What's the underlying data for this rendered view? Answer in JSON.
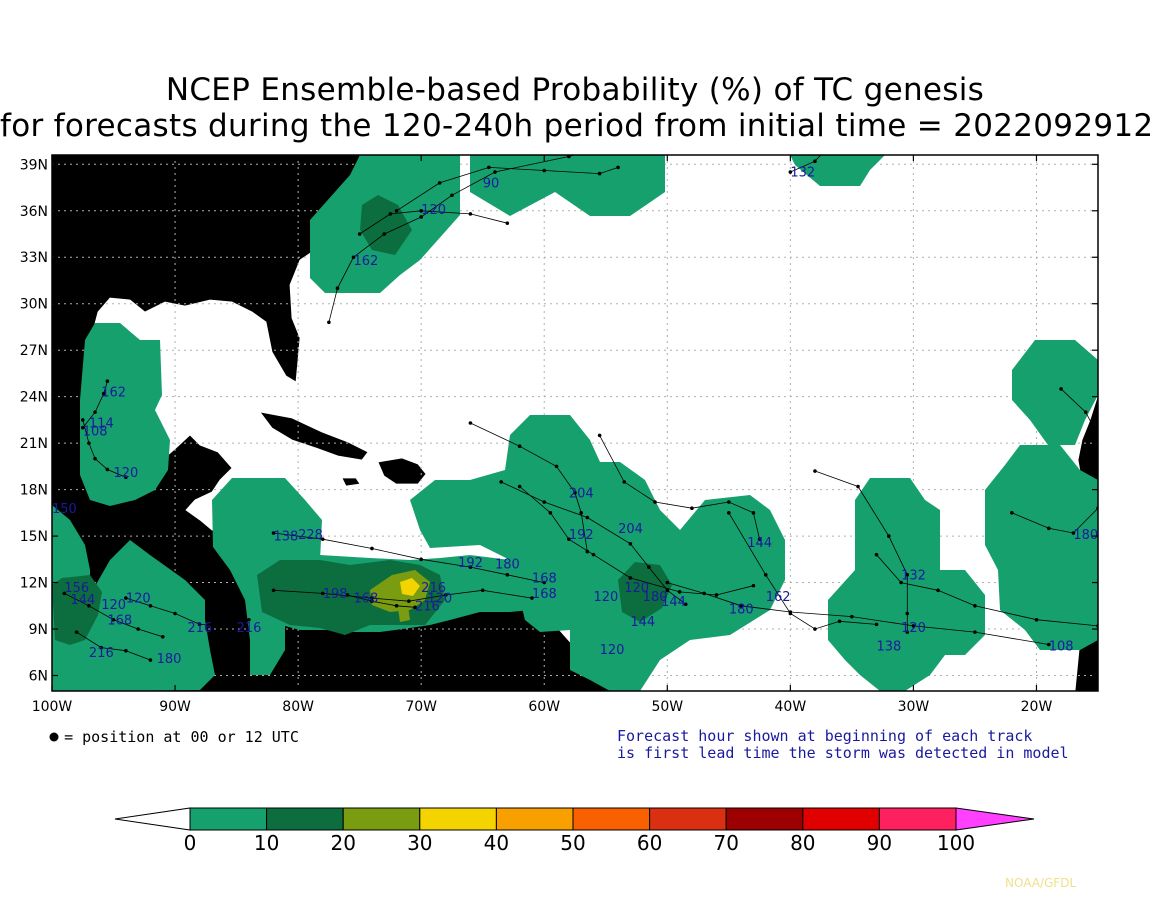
{
  "title_line1": "NCEP Ensemble-based Probability (%) of TC genesis",
  "title_line2": "for forecasts during the 120-240h period from initial time = 2022092912",
  "lat_labels": [
    "39N",
    "36N",
    "33N",
    "30N",
    "27N",
    "24N",
    "21N",
    "18N",
    "15N",
    "12N",
    "9N",
    "6N"
  ],
  "lon_labels": [
    "100W",
    "90W",
    "80W",
    "70W",
    "60W",
    "50W",
    "40W",
    "30W",
    "20W"
  ],
  "position_note": "= position at 00 or 12 UTC",
  "forecast_note_line1": "Forecast hour shown at beginning of each track",
  "forecast_note_line2": "is first lead time the storm was detected in model",
  "credit": "NOAA/GFDL",
  "colorbar": {
    "ticks": [
      "0",
      "10",
      "20",
      "30",
      "40",
      "50",
      "60",
      "70",
      "80",
      "90",
      "100"
    ],
    "colors": [
      "#ffffff",
      "#16a06e",
      "#0c6e3e",
      "#7a9c10",
      "#f4d400",
      "#f8a000",
      "#f86000",
      "#d83010",
      "#9c0000",
      "#e00000",
      "#ff2060",
      "#ff40ff"
    ]
  },
  "colors": {
    "land": "#a0a0a0",
    "prob_10": "#16a06e",
    "prob_20": "#0c6e3e",
    "prob_30": "#7a9c10",
    "prob_40": "#f4d400",
    "track_label": "#1a1a9e"
  },
  "track_labels": [
    {
      "text": "90",
      "lat": 37.5,
      "lon": -65
    },
    {
      "text": "132",
      "lat": 38.2,
      "lon": -40
    },
    {
      "text": "120",
      "lat": 35.8,
      "lon": -70
    },
    {
      "text": "162",
      "lat": 32.5,
      "lon": -75.5
    },
    {
      "text": "162",
      "lat": 24,
      "lon": -96
    },
    {
      "text": "114",
      "lat": 22,
      "lon": -97
    },
    {
      "text": "108",
      "lat": 21.5,
      "lon": -97.5
    },
    {
      "text": "120",
      "lat": 18.8,
      "lon": -95
    },
    {
      "text": "150",
      "lat": 16.5,
      "lon": -100
    },
    {
      "text": "204",
      "lat": 17.5,
      "lon": -58
    },
    {
      "text": "204",
      "lat": 15.2,
      "lon": -54
    },
    {
      "text": "192",
      "lat": 14.8,
      "lon": -58
    },
    {
      "text": "144",
      "lat": 14.3,
      "lon": -43.5
    },
    {
      "text": "180",
      "lat": 14.8,
      "lon": -17
    },
    {
      "text": "132",
      "lat": 12.2,
      "lon": -31
    },
    {
      "text": "138",
      "lat": 14.7,
      "lon": -82
    },
    {
      "text": "228",
      "lat": 14.8,
      "lon": -80
    },
    {
      "text": "192",
      "lat": 13,
      "lon": -67
    },
    {
      "text": "180",
      "lat": 12.9,
      "lon": -64
    },
    {
      "text": "168",
      "lat": 12,
      "lon": -61
    },
    {
      "text": "168",
      "lat": 11,
      "lon": -61
    },
    {
      "text": "120",
      "lat": 11.4,
      "lon": -53.5
    },
    {
      "text": "180",
      "lat": 10.8,
      "lon": -52
    },
    {
      "text": "144",
      "lat": 10.5,
      "lon": -50.5
    },
    {
      "text": "162",
      "lat": 10.8,
      "lon": -42
    },
    {
      "text": "180",
      "lat": 10,
      "lon": -45
    },
    {
      "text": "120",
      "lat": 10.8,
      "lon": -56
    },
    {
      "text": "144",
      "lat": 9.2,
      "lon": -53
    },
    {
      "text": "120",
      "lat": 8.8,
      "lon": -31
    },
    {
      "text": "138",
      "lat": 7.6,
      "lon": -33
    },
    {
      "text": "108",
      "lat": 7.6,
      "lon": -19
    },
    {
      "text": "120",
      "lat": 7.4,
      "lon": -55.5
    },
    {
      "text": "156",
      "lat": 11.4,
      "lon": -99
    },
    {
      "text": "144",
      "lat": 10.6,
      "lon": -98.5
    },
    {
      "text": "120",
      "lat": 10.3,
      "lon": -96
    },
    {
      "text": "120",
      "lat": 10.7,
      "lon": -94
    },
    {
      "text": "168",
      "lat": 9.3,
      "lon": -95.5
    },
    {
      "text": "216",
      "lat": 8.8,
      "lon": -89
    },
    {
      "text": "216",
      "lat": 8.8,
      "lon": -85
    },
    {
      "text": "216",
      "lat": 7.2,
      "lon": -97
    },
    {
      "text": "180",
      "lat": 6.8,
      "lon": -91.5
    },
    {
      "text": "198",
      "lat": 11,
      "lon": -78
    },
    {
      "text": "168",
      "lat": 10.7,
      "lon": -75.5
    },
    {
      "text": "216",
      "lat": 11.4,
      "lon": -70
    },
    {
      "text": "120",
      "lat": 10.7,
      "lon": -69.5
    },
    {
      "text": "216",
      "lat": 10.2,
      "lon": -70.5
    }
  ]
}
